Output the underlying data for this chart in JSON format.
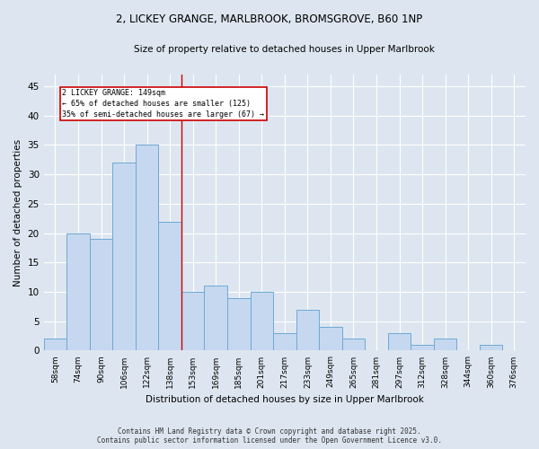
{
  "title_line1": "2, LICKEY GRANGE, MARLBROOK, BROMSGROVE, B60 1NP",
  "title_line2": "Size of property relative to detached houses in Upper Marlbrook",
  "xlabel": "Distribution of detached houses by size in Upper Marlbrook",
  "ylabel": "Number of detached properties",
  "categories": [
    "58sqm",
    "74sqm",
    "90sqm",
    "106sqm",
    "122sqm",
    "138sqm",
    "153sqm",
    "169sqm",
    "185sqm",
    "201sqm",
    "217sqm",
    "233sqm",
    "249sqm",
    "265sqm",
    "281sqm",
    "297sqm",
    "312sqm",
    "328sqm",
    "344sqm",
    "360sqm",
    "376sqm"
  ],
  "values": [
    2,
    20,
    19,
    32,
    35,
    22,
    10,
    11,
    9,
    10,
    3,
    7,
    4,
    2,
    0,
    3,
    1,
    2,
    0,
    1,
    0
  ],
  "bar_color": "#c5d8f0",
  "bar_edge_color": "#6fa8d4",
  "bg_color": "#dde6f0",
  "grid_color": "#ffffff",
  "vline_x": 5.5,
  "vline_color": "#cc0000",
  "annotation_text": "2 LICKEY GRANGE: 149sqm\n← 65% of detached houses are smaller (125)\n35% of semi-detached houses are larger (67) →",
  "annotation_box_color": "#cc0000",
  "ylim": [
    0,
    47
  ],
  "yticks": [
    0,
    5,
    10,
    15,
    20,
    25,
    30,
    35,
    40,
    45
  ],
  "footer_line1": "Contains HM Land Registry data © Crown copyright and database right 2025.",
  "footer_line2": "Contains public sector information licensed under the Open Government Licence v3.0."
}
